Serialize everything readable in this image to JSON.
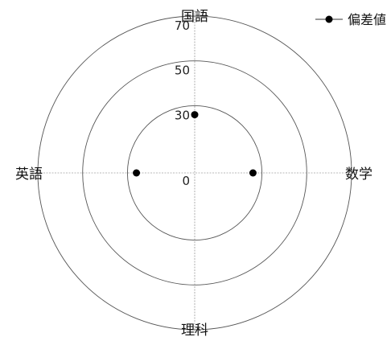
{
  "chart_data": {
    "type": "radar",
    "title": "",
    "axes": [
      "国語",
      "数学",
      "理科",
      "英語"
    ],
    "series": [
      {
        "name": "偏差値",
        "values": [
          26,
          26,
          0,
          26
        ],
        "color": "#000000"
      }
    ],
    "rings": [
      30,
      50,
      70
    ],
    "tick_labels": [
      "0",
      "30",
      "50",
      "70"
    ],
    "range": [
      0,
      70
    ],
    "grid": true,
    "legend": "top-right"
  }
}
